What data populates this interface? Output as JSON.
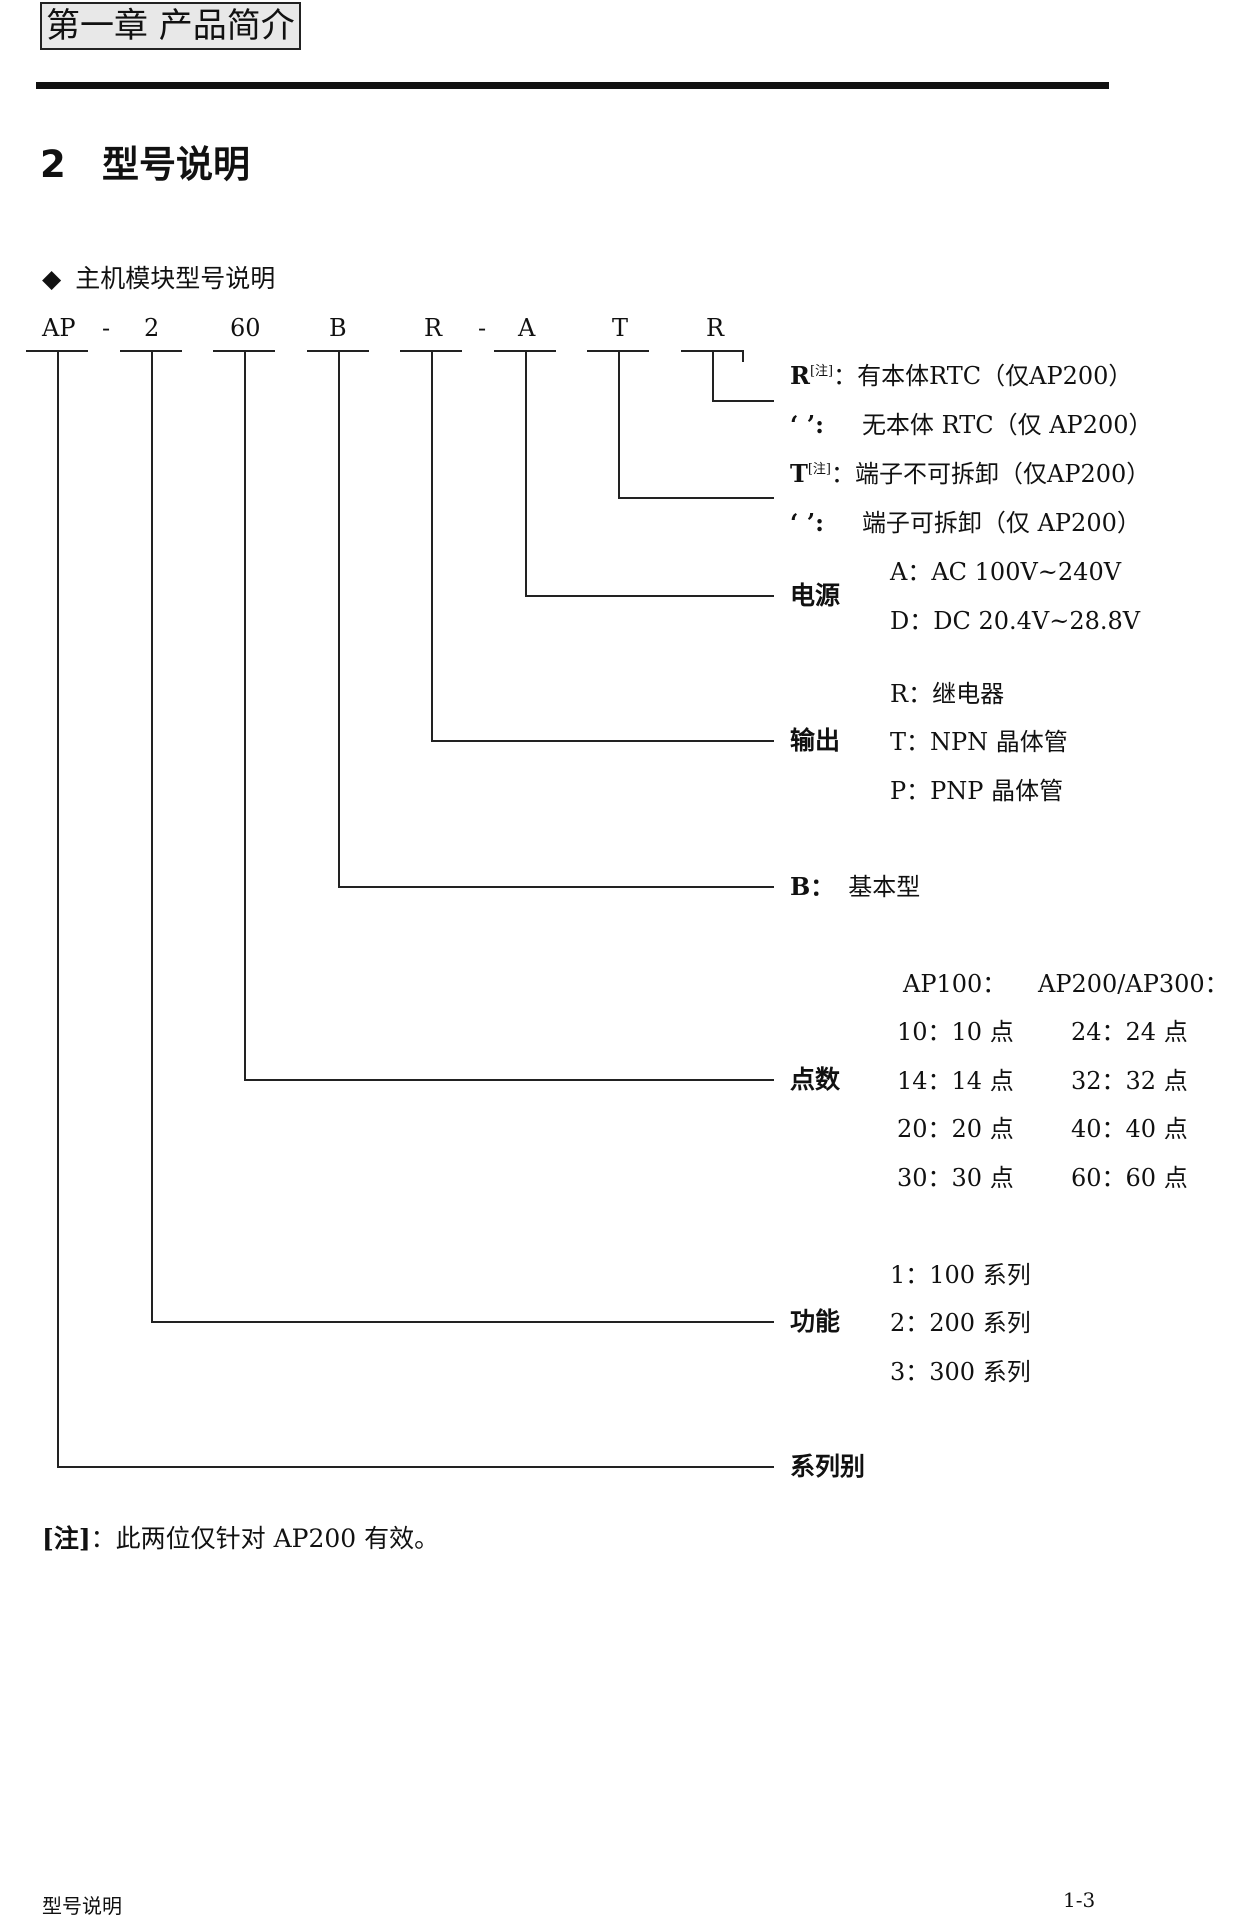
{
  "header": {
    "chapter": "第一章 产品简介"
  },
  "section": {
    "number": "2",
    "title": "型号说明"
  },
  "subsection": {
    "bullet": "◆",
    "title": "主机模块型号说明"
  },
  "model_code": {
    "segments": [
      "AP",
      "2",
      "60",
      "B",
      "R",
      "A",
      "T",
      "R"
    ],
    "separators": [
      "-",
      "-"
    ]
  },
  "legend": {
    "rtc": {
      "r_label": "R",
      "r_note": "[注]",
      "r_text": "：有本体RTC（仅AP200）",
      "blank_label": "‘ ’:",
      "blank_text": "无本体 RTC（仅 AP200）"
    },
    "terminal": {
      "t_label": "T",
      "t_note": "[注]",
      "t_text": "：端子不可拆卸（仅AP200）",
      "blank_label": "‘ ’:",
      "blank_text": "端子可拆卸（仅 AP200）"
    },
    "power": {
      "label": "电源",
      "options": [
        "A：AC 100V~240V",
        "D：DC 20.4V~28.8V"
      ]
    },
    "output": {
      "label": "输出",
      "options": [
        "R：继电器",
        "T：NPN 晶体管",
        "P：PNP 晶体管"
      ]
    },
    "type": {
      "label": "B：",
      "text": "基本型"
    },
    "points": {
      "label": "点数",
      "col1_header": "AP100：",
      "col2_header": "AP200/AP300：",
      "col1": [
        "10：10 点",
        "14：14 点",
        "20：20 点",
        "30：30 点"
      ],
      "col2": [
        "24：24 点",
        "32：32 点",
        "40：40 点",
        "60：60 点"
      ]
    },
    "function": {
      "label": "功能",
      "options": [
        "1：100 系列",
        "2：200 系列",
        "3：300 系列"
      ]
    },
    "series": {
      "label": "系列别"
    }
  },
  "note": {
    "label": "[注]",
    "text": "：此两位仅针对 AP200 有效。"
  },
  "footer": {
    "left": "型号说明",
    "right": "1-3"
  }
}
